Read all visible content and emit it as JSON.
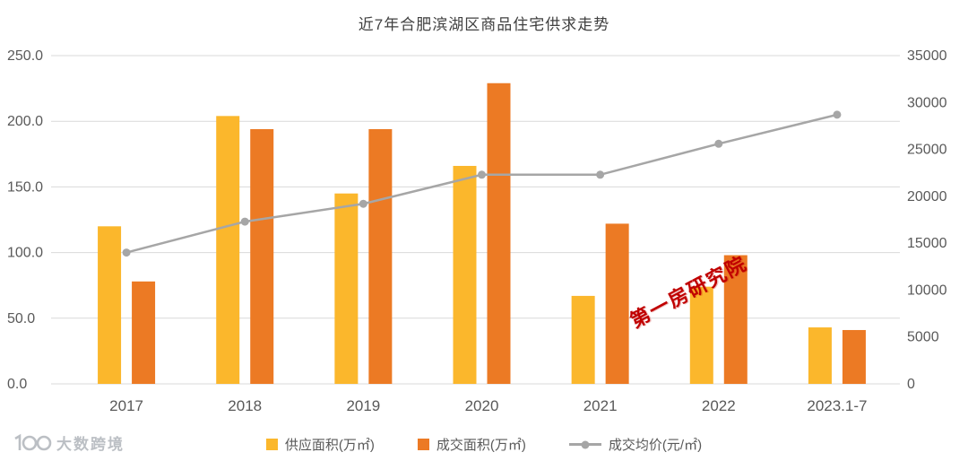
{
  "title": "近7年合肥滨湖区商品住宅供求走势",
  "watermark_text": "第一房研究院",
  "logo": {
    "text": "大数跨境"
  },
  "colors": {
    "supply": "#FBB72C",
    "deal": "#EC7A24",
    "price_line": "#A6A6A6",
    "grid": "#D9D9D9",
    "axis_text": "#595959",
    "title_text": "#404040",
    "watermark": "#C00000"
  },
  "chart_data": {
    "type": "bar+line",
    "title": "近7年合肥滨湖区商品住宅供求走势",
    "categories": [
      "2017",
      "2018",
      "2019",
      "2020",
      "2021",
      "2022",
      "2023.1-7"
    ],
    "series": [
      {
        "name": "供应面积(万㎡)",
        "type": "bar",
        "axis": "left",
        "values": [
          120,
          204,
          145,
          166,
          67,
          74,
          43
        ]
      },
      {
        "name": "成交面积(万㎡)",
        "type": "bar",
        "axis": "left",
        "values": [
          78,
          194,
          194,
          229,
          122,
          98,
          41
        ]
      },
      {
        "name": "成交均价(元/㎡)",
        "type": "line",
        "axis": "right",
        "values": [
          14000,
          17300,
          19200,
          22300,
          22300,
          25600,
          28700
        ]
      }
    ],
    "left_axis": {
      "min": 0,
      "max": 250,
      "step": 50,
      "labels": [
        "0.0",
        "50.0",
        "100.0",
        "150.0",
        "200.0",
        "250.0"
      ]
    },
    "right_axis": {
      "min": 0,
      "max": 35000,
      "step": 5000,
      "labels": [
        "0",
        "5000",
        "10000",
        "15000",
        "20000",
        "25000",
        "30000",
        "35000"
      ]
    },
    "grid": "horizontal",
    "legend_position": "bottom"
  }
}
